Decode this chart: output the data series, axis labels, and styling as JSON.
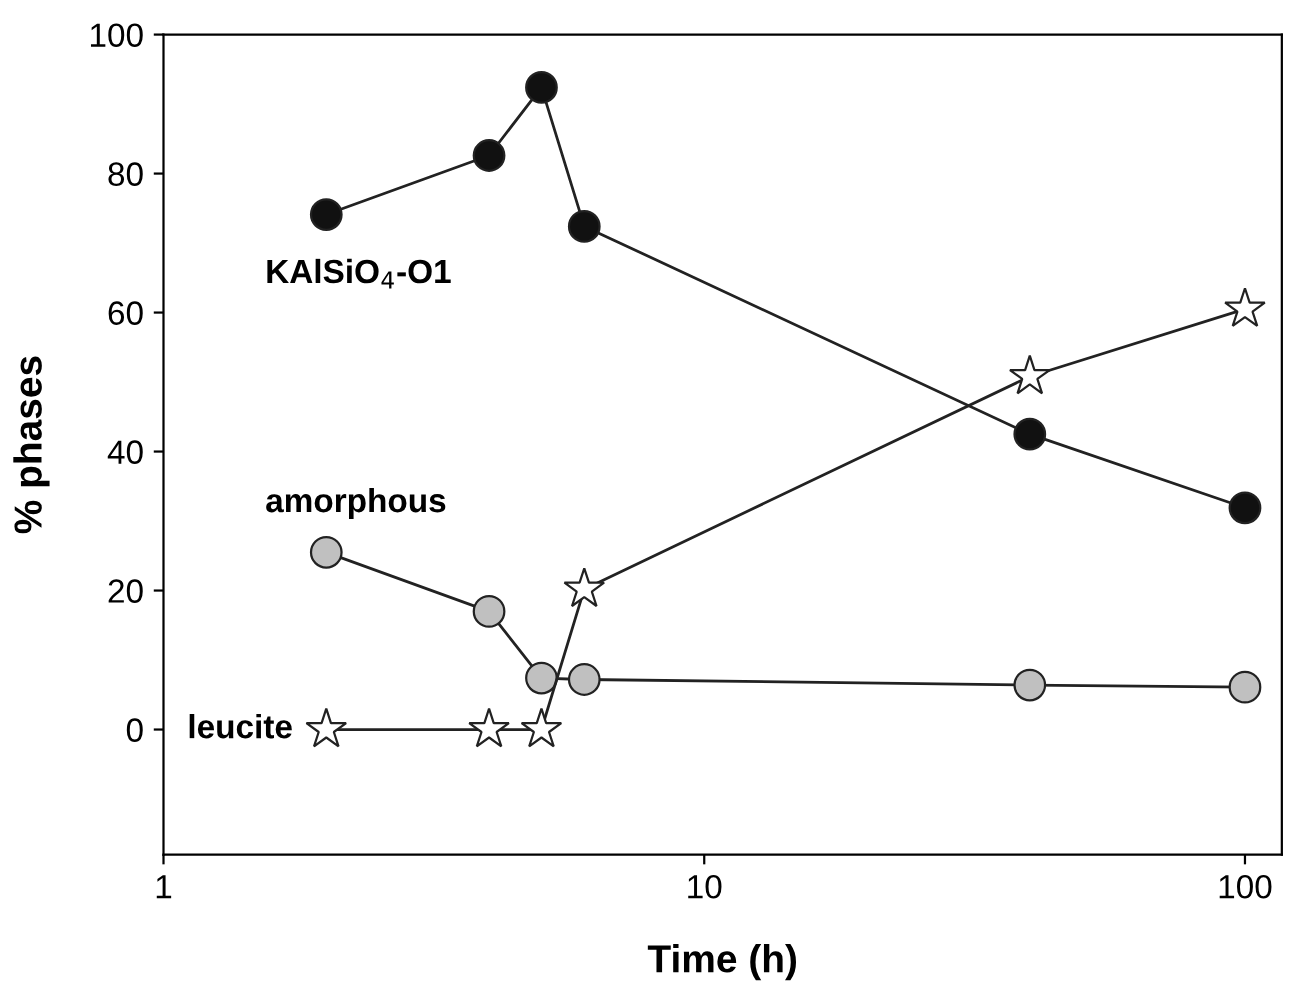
{
  "chart_data": {
    "type": "line",
    "xlabel": "Time (h)",
    "ylabel": "% phases",
    "log": "x",
    "xlim": [
      1,
      117
    ],
    "xticks": [
      1,
      10,
      100
    ],
    "ylim": [
      -18,
      100
    ],
    "yticks": [
      0,
      20,
      40,
      60,
      80,
      100
    ],
    "grid": false,
    "legend": false,
    "line_style": "solid",
    "series": [
      {
        "name": "KAlSiO$_{4}$-O1",
        "color": "#111111",
        "marker": "circle",
        "x": [
          2,
          4,
          5,
          6,
          40,
          100
        ],
        "values": [
          74.1,
          82.6,
          92.4,
          72.4,
          42.5,
          31.9
        ]
      },
      {
        "name": "amorphous",
        "color": "#c0c0c0",
        "marker": "circle",
        "x": [
          2,
          4,
          5,
          6,
          40,
          100
        ],
        "values": [
          25.5,
          17.0,
          7.4,
          7.2,
          6.4,
          6.1
        ]
      },
      {
        "name": "leucite",
        "color": "#ffffff",
        "marker": "star",
        "x": [
          2,
          4,
          5,
          6,
          40,
          100
        ],
        "values": [
          0,
          0,
          0,
          20.2,
          50.8,
          60.5
        ]
      }
    ]
  }
}
